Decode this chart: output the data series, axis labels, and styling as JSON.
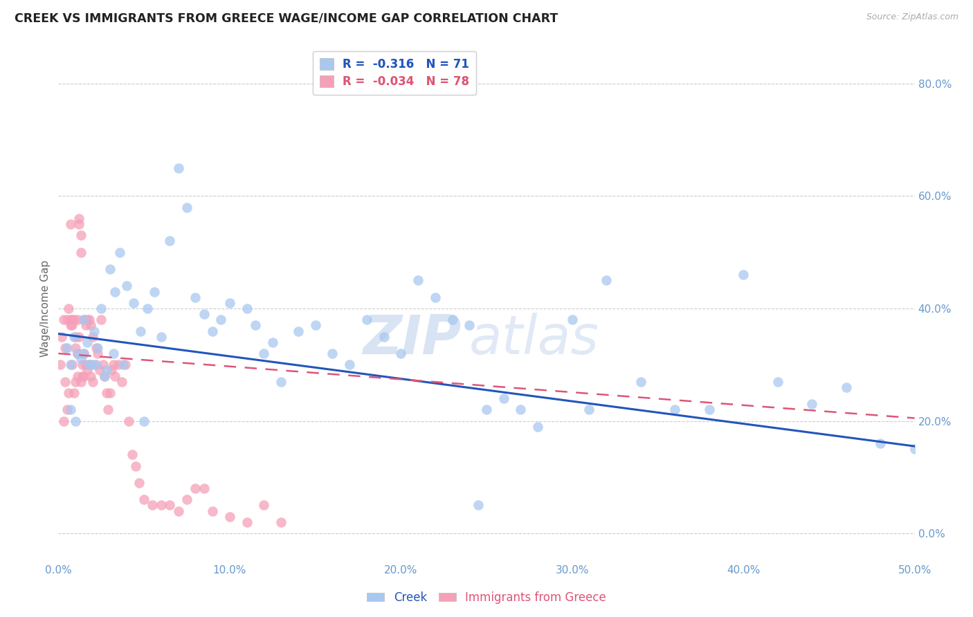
{
  "title": "CREEK VS IMMIGRANTS FROM GREECE WAGE/INCOME GAP CORRELATION CHART",
  "source": "Source: ZipAtlas.com",
  "ylabel": "Wage/Income Gap",
  "legend_labels": [
    "Creek",
    "Immigrants from Greece"
  ],
  "legend_r": [
    -0.316,
    -0.034
  ],
  "legend_n": [
    71,
    78
  ],
  "blue_color": "#A8C8F0",
  "pink_color": "#F5A0B8",
  "blue_line_color": "#2255BB",
  "pink_line_color": "#DD5577",
  "tick_color": "#6699CC",
  "xmin": 0.0,
  "xmax": 0.5,
  "ymin": -0.05,
  "ymax": 0.85,
  "yticks": [
    0.0,
    0.2,
    0.4,
    0.6,
    0.8
  ],
  "xticks": [
    0.0,
    0.1,
    0.2,
    0.3,
    0.4,
    0.5
  ],
  "watermark_zip": "ZIP",
  "watermark_atlas": "atlas",
  "blue_x": [
    0.005,
    0.007,
    0.009,
    0.011,
    0.013,
    0.015,
    0.017,
    0.019,
    0.021,
    0.023,
    0.025,
    0.028,
    0.03,
    0.033,
    0.036,
    0.04,
    0.044,
    0.048,
    0.052,
    0.056,
    0.06,
    0.065,
    0.07,
    0.075,
    0.08,
    0.085,
    0.09,
    0.095,
    0.1,
    0.11,
    0.115,
    0.12,
    0.125,
    0.13,
    0.14,
    0.15,
    0.16,
    0.17,
    0.18,
    0.19,
    0.2,
    0.21,
    0.22,
    0.23,
    0.24,
    0.25,
    0.26,
    0.27,
    0.28,
    0.3,
    0.31,
    0.32,
    0.34,
    0.36,
    0.38,
    0.4,
    0.42,
    0.44,
    0.46,
    0.48,
    0.5,
    0.007,
    0.01,
    0.015,
    0.018,
    0.022,
    0.027,
    0.032,
    0.038,
    0.05,
    0.245
  ],
  "blue_y": [
    0.33,
    0.3,
    0.35,
    0.32,
    0.31,
    0.38,
    0.34,
    0.3,
    0.36,
    0.33,
    0.4,
    0.29,
    0.47,
    0.43,
    0.5,
    0.44,
    0.41,
    0.36,
    0.4,
    0.43,
    0.35,
    0.52,
    0.65,
    0.58,
    0.42,
    0.39,
    0.36,
    0.38,
    0.41,
    0.4,
    0.37,
    0.32,
    0.34,
    0.27,
    0.36,
    0.37,
    0.32,
    0.3,
    0.38,
    0.35,
    0.32,
    0.45,
    0.42,
    0.38,
    0.37,
    0.22,
    0.24,
    0.22,
    0.19,
    0.38,
    0.22,
    0.45,
    0.27,
    0.22,
    0.22,
    0.46,
    0.27,
    0.23,
    0.26,
    0.16,
    0.15,
    0.22,
    0.2,
    0.32,
    0.3,
    0.3,
    0.28,
    0.32,
    0.3,
    0.2,
    0.05
  ],
  "pink_x": [
    0.001,
    0.002,
    0.003,
    0.003,
    0.004,
    0.004,
    0.005,
    0.005,
    0.006,
    0.006,
    0.007,
    0.007,
    0.007,
    0.008,
    0.008,
    0.008,
    0.009,
    0.009,
    0.01,
    0.01,
    0.01,
    0.011,
    0.011,
    0.011,
    0.012,
    0.012,
    0.012,
    0.013,
    0.013,
    0.013,
    0.014,
    0.014,
    0.015,
    0.015,
    0.015,
    0.016,
    0.016,
    0.017,
    0.017,
    0.018,
    0.018,
    0.019,
    0.019,
    0.02,
    0.02,
    0.021,
    0.022,
    0.023,
    0.024,
    0.025,
    0.026,
    0.027,
    0.028,
    0.029,
    0.03,
    0.031,
    0.032,
    0.033,
    0.035,
    0.037,
    0.039,
    0.041,
    0.043,
    0.045,
    0.047,
    0.05,
    0.055,
    0.06,
    0.065,
    0.07,
    0.075,
    0.08,
    0.085,
    0.09,
    0.1,
    0.11,
    0.12,
    0.13
  ],
  "pink_y": [
    0.3,
    0.35,
    0.2,
    0.38,
    0.33,
    0.27,
    0.22,
    0.38,
    0.4,
    0.25,
    0.38,
    0.37,
    0.55,
    0.38,
    0.37,
    0.3,
    0.38,
    0.25,
    0.35,
    0.33,
    0.27,
    0.38,
    0.32,
    0.28,
    0.56,
    0.55,
    0.35,
    0.53,
    0.5,
    0.27,
    0.3,
    0.28,
    0.38,
    0.32,
    0.28,
    0.37,
    0.3,
    0.38,
    0.29,
    0.38,
    0.3,
    0.37,
    0.28,
    0.35,
    0.27,
    0.3,
    0.33,
    0.32,
    0.29,
    0.38,
    0.3,
    0.28,
    0.25,
    0.22,
    0.25,
    0.29,
    0.3,
    0.28,
    0.3,
    0.27,
    0.3,
    0.2,
    0.14,
    0.12,
    0.09,
    0.06,
    0.05,
    0.05,
    0.05,
    0.04,
    0.06,
    0.08,
    0.08,
    0.04,
    0.03,
    0.02,
    0.05,
    0.02
  ]
}
